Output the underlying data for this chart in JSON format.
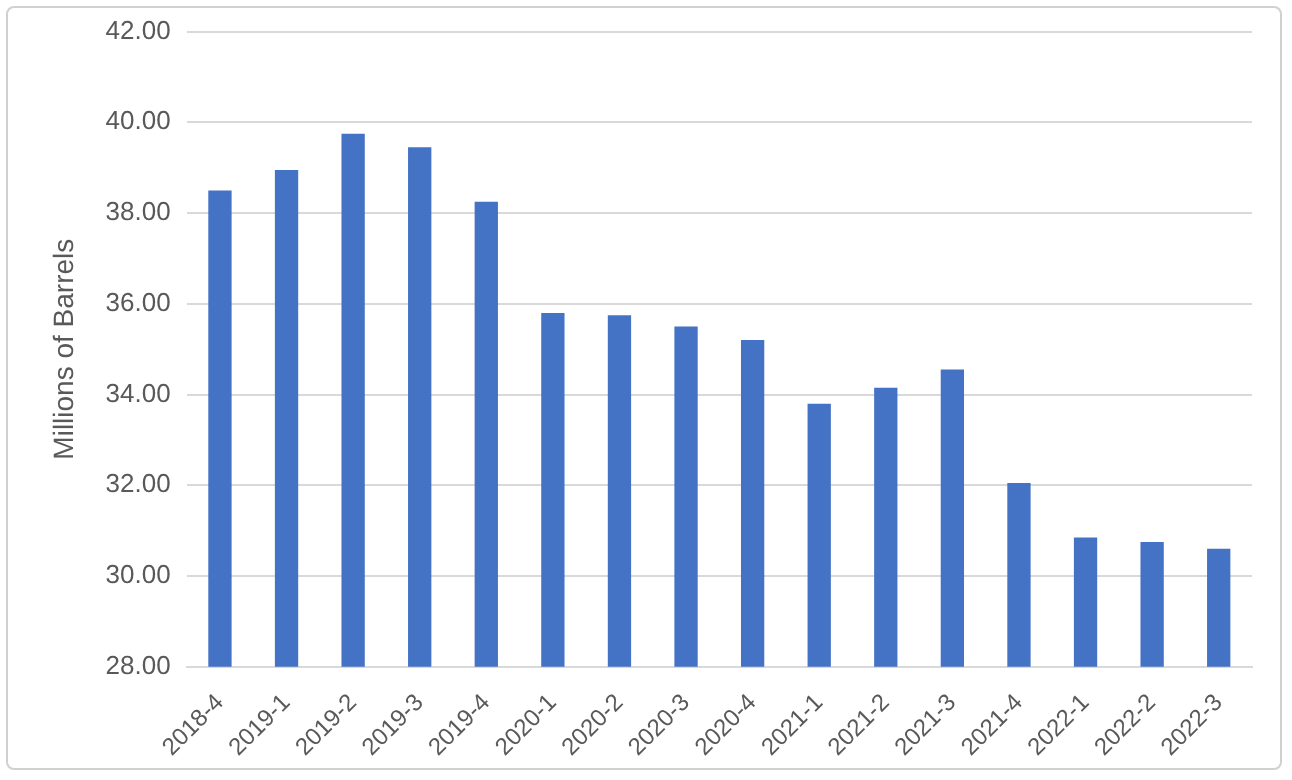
{
  "chart_data": {
    "type": "bar",
    "ylabel": "Millions of Barrels",
    "categories": [
      "2018-4",
      "2019-1",
      "2019-2",
      "2019-3",
      "2019-4",
      "2020-1",
      "2020-2",
      "2020-3",
      "2020-4",
      "2021-1",
      "2021-2",
      "2021-3",
      "2021-4",
      "2022-1",
      "2022-2",
      "2022-3"
    ],
    "values": [
      38.5,
      38.95,
      39.75,
      39.45,
      38.25,
      35.8,
      35.75,
      35.5,
      35.2,
      33.8,
      34.15,
      34.55,
      32.05,
      30.85,
      30.75,
      30.6
    ],
    "color": "#4472c4",
    "ylim": [
      28,
      42
    ],
    "yticks": [
      {
        "value": 28,
        "label": "28.00"
      },
      {
        "value": 30,
        "label": "30.00"
      },
      {
        "value": 32,
        "label": "32.00"
      },
      {
        "value": 34,
        "label": "34.00"
      },
      {
        "value": 36,
        "label": "36.00"
      },
      {
        "value": 38,
        "label": "38.00"
      },
      {
        "value": 40,
        "label": "40.00"
      },
      {
        "value": 42,
        "label": "42.00"
      }
    ],
    "grid": "y",
    "legend": false
  }
}
